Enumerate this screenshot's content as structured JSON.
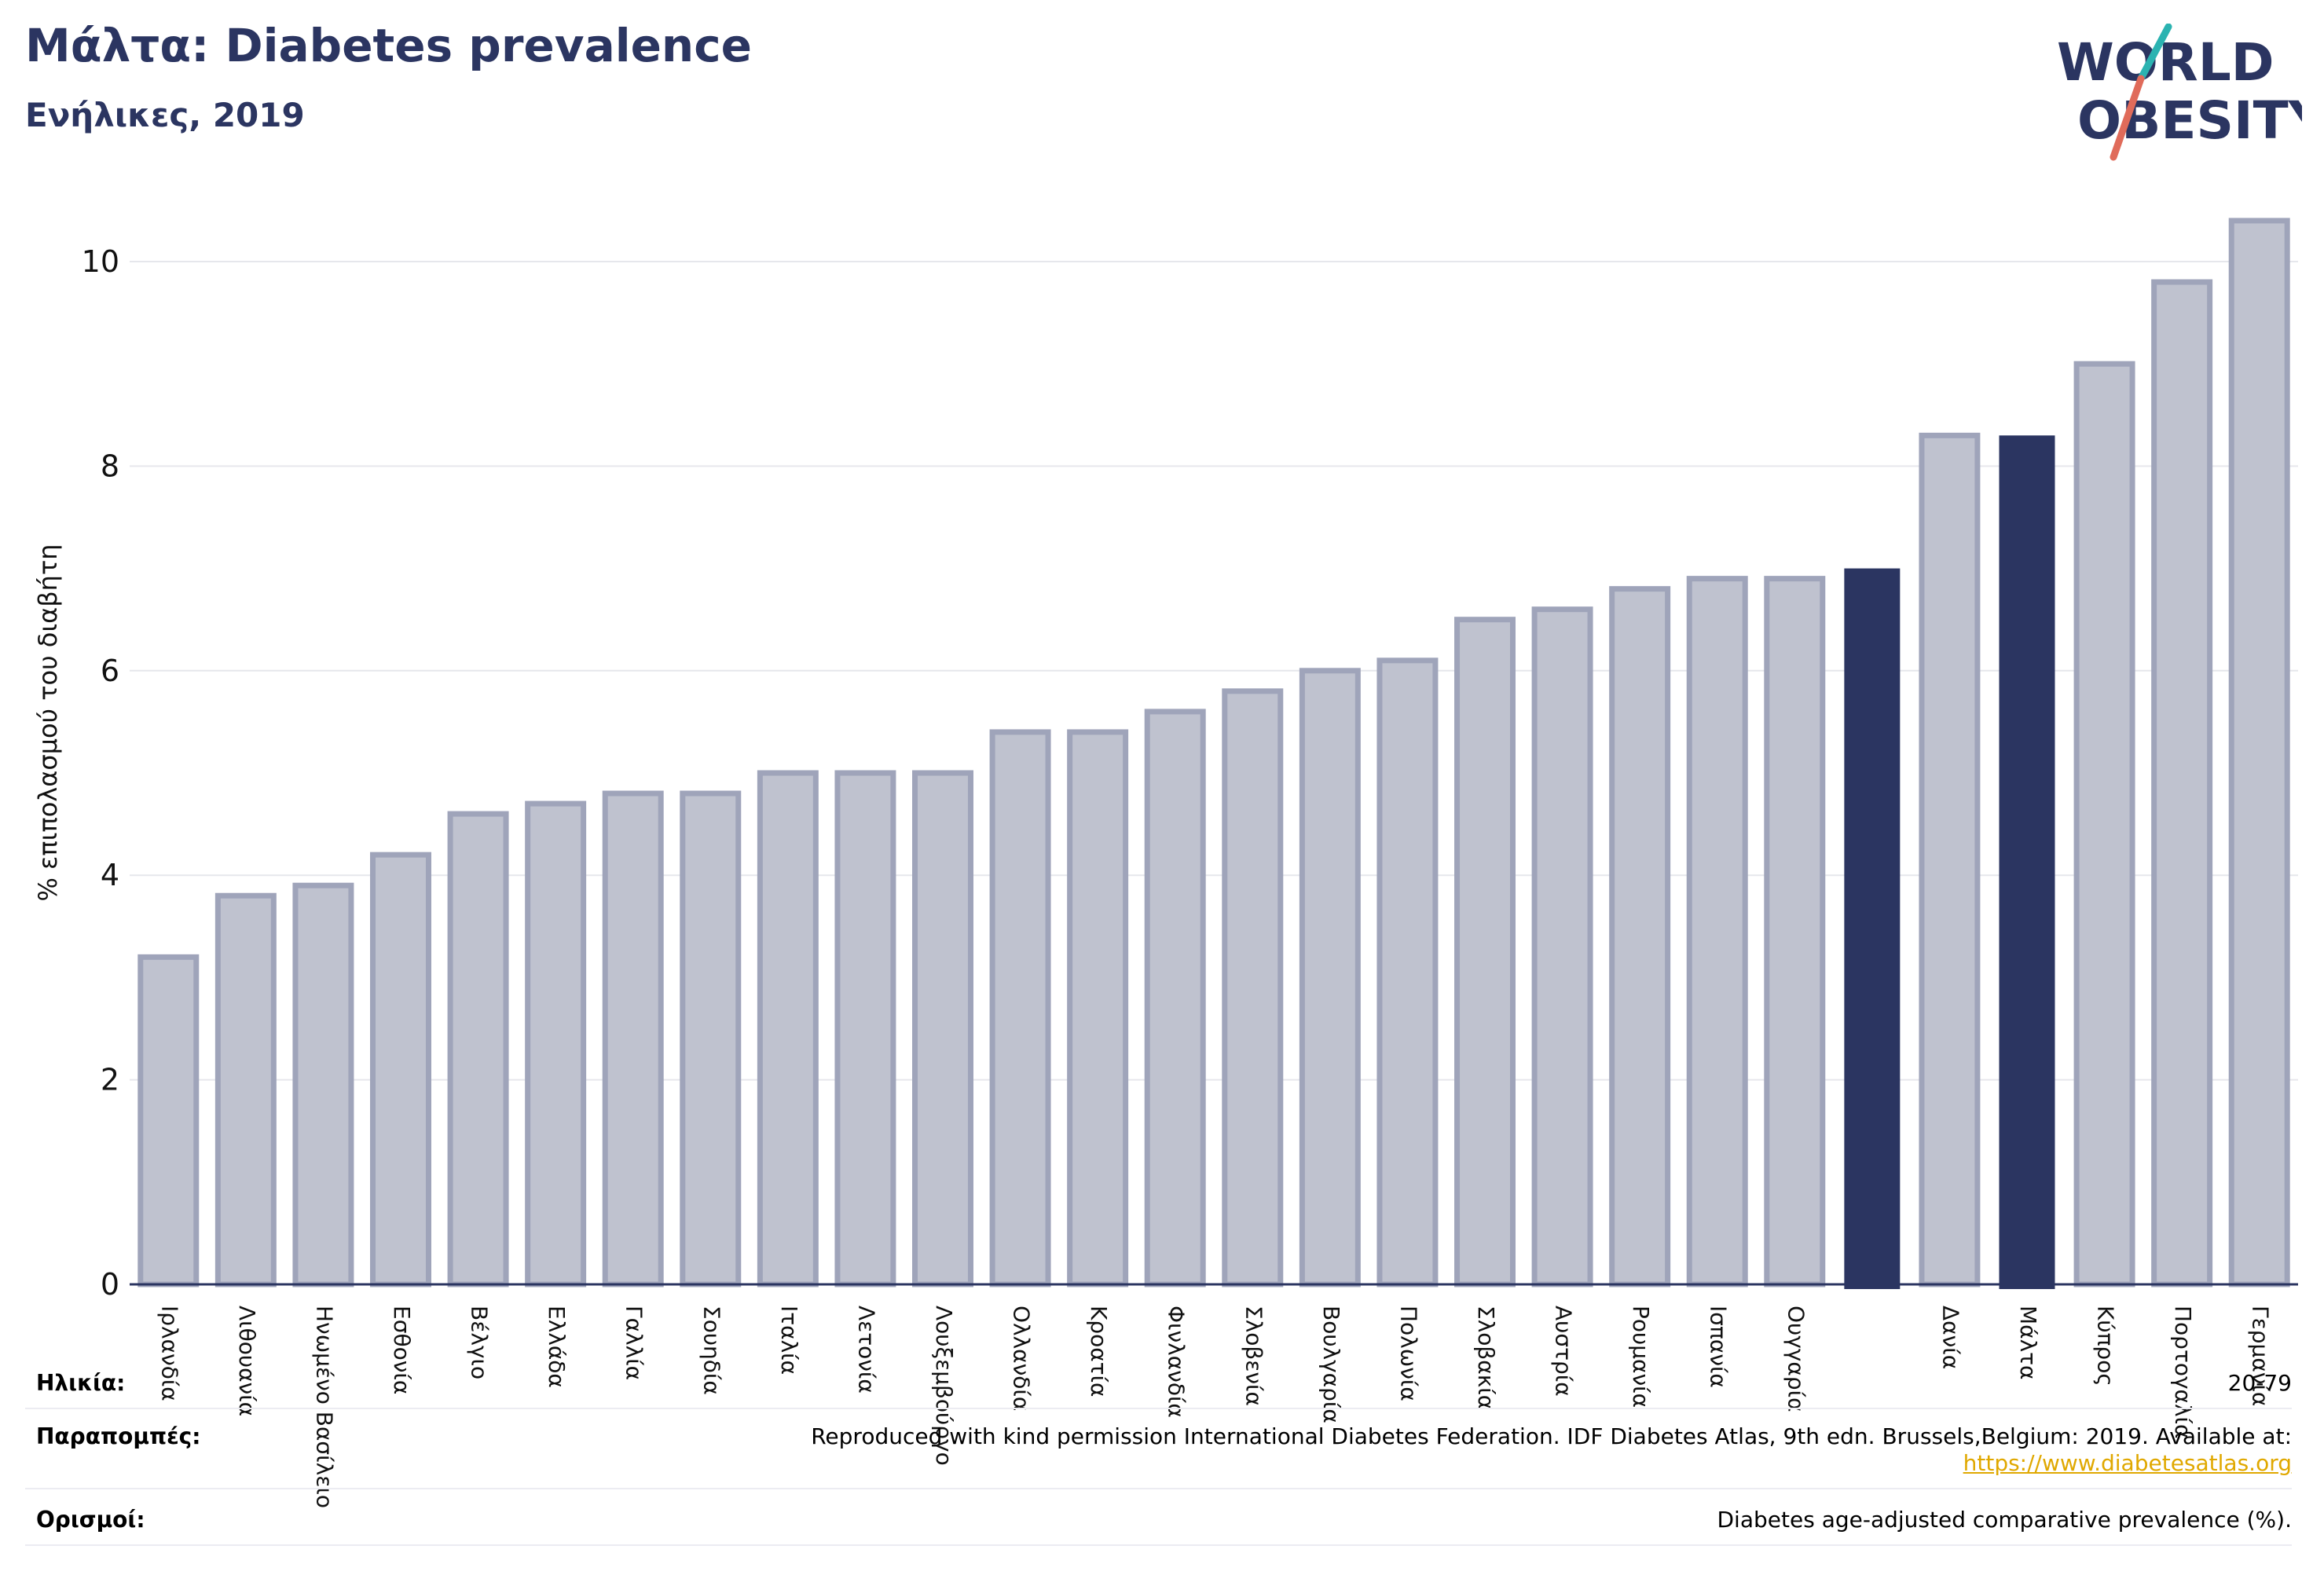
{
  "header": {
    "title": "Μάλτα: Diabetes prevalence",
    "subtitle": "Ενήλικες, 2019",
    "logo_line1": "WORLD",
    "logo_line2": "OBESITY"
  },
  "colors": {
    "accent": "#2b3561",
    "bar_fill": "#bfc2cf",
    "bar_stroke": "#9fa4ba",
    "highlight": "#2b3561",
    "logo_teal": "#2bb3b1",
    "logo_red": "#e06b5a",
    "link": "#e0a800"
  },
  "chart_data": {
    "type": "bar",
    "ylabel": "% επιπολασμού του διαβήτη",
    "ylim": [
      0,
      10.5
    ],
    "yticks": [
      0,
      2,
      4,
      6,
      8,
      10
    ],
    "grid": true,
    "categories": [
      "Ιρλανδία",
      "Λιθουανία",
      "Ηνωμένο Βασίλειο",
      "Εσθονία",
      "Βέλγιο",
      "Ελλάδα",
      "Γαλλία",
      "Σουηδία",
      "Ιταλία",
      "Λετονία",
      "Λουξεμβούργο",
      "Ολλανδία",
      "Κροατία",
      "Φινλανδία",
      "Σλοβενία",
      "Βουλγαρία",
      "Πολωνία",
      "Σλοβακία",
      "Αυστρία",
      "Ρουμανία",
      "Ισπανία",
      "Ουγγαρία",
      "",
      "Δανία",
      "Μάλτα",
      "Κύπρος",
      "Πορτογαλία",
      "Γερμανία"
    ],
    "values": [
      3.2,
      3.8,
      3.9,
      4.2,
      4.6,
      4.7,
      4.8,
      4.8,
      5.0,
      5.0,
      5.0,
      5.4,
      5.4,
      5.6,
      5.8,
      6.0,
      6.1,
      6.5,
      6.6,
      6.8,
      6.9,
      6.9,
      7.0,
      8.3,
      8.3,
      9.0,
      9.8,
      10.4
    ],
    "highlighted": [
      22,
      24
    ]
  },
  "meta": {
    "age_label": "Ηλικία:",
    "age_value": "20-79",
    "references_label": "Παραπομπές:",
    "references_text": "Reproduced with kind permission International Diabetes Federation. IDF Diabetes Atlas, 9th edn. Brussels,Belgium: 2019. Available at:",
    "references_link": "https://www.diabetesatlas.org",
    "definitions_label": "Ορισμοί:",
    "definitions_text": "Diabetes age-adjusted comparative prevalence (%)."
  }
}
